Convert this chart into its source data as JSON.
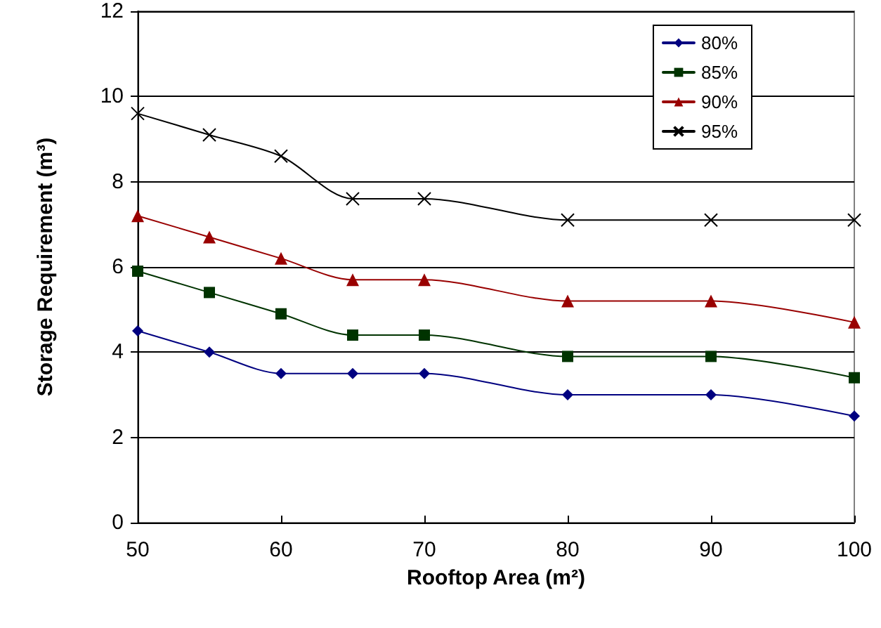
{
  "chart_data": {
    "type": "line",
    "xlabel": "Rooftop Area (m²)",
    "ylabel": "Storage Requirement (m³)",
    "x": [
      50,
      55,
      60,
      65,
      70,
      80,
      90,
      100
    ],
    "series": [
      {
        "name": "80%",
        "color": "#000080",
        "marker": "diamond",
        "values": [
          4.5,
          4.0,
          3.5,
          3.5,
          3.5,
          3.0,
          3.0,
          2.5
        ]
      },
      {
        "name": "85%",
        "color": "#003300",
        "marker": "square",
        "values": [
          5.9,
          5.4,
          4.9,
          4.4,
          4.4,
          3.9,
          3.9,
          3.4
        ]
      },
      {
        "name": "90%",
        "color": "#990000",
        "marker": "triangle",
        "values": [
          7.2,
          6.7,
          6.2,
          5.7,
          5.7,
          5.2,
          5.2,
          4.7
        ]
      },
      {
        "name": "95%",
        "color": "#000000",
        "marker": "cross",
        "values": [
          9.6,
          9.1,
          8.6,
          7.6,
          7.6,
          7.1,
          7.1,
          7.1
        ]
      }
    ],
    "xlim": [
      50,
      100
    ],
    "xticks": [
      50,
      60,
      70,
      80,
      90,
      100
    ],
    "ylim": [
      0,
      12
    ],
    "yticks": [
      0,
      2,
      4,
      6,
      8,
      10,
      12
    ],
    "grid": "y",
    "legend": "top right",
    "line_style": "solid"
  }
}
